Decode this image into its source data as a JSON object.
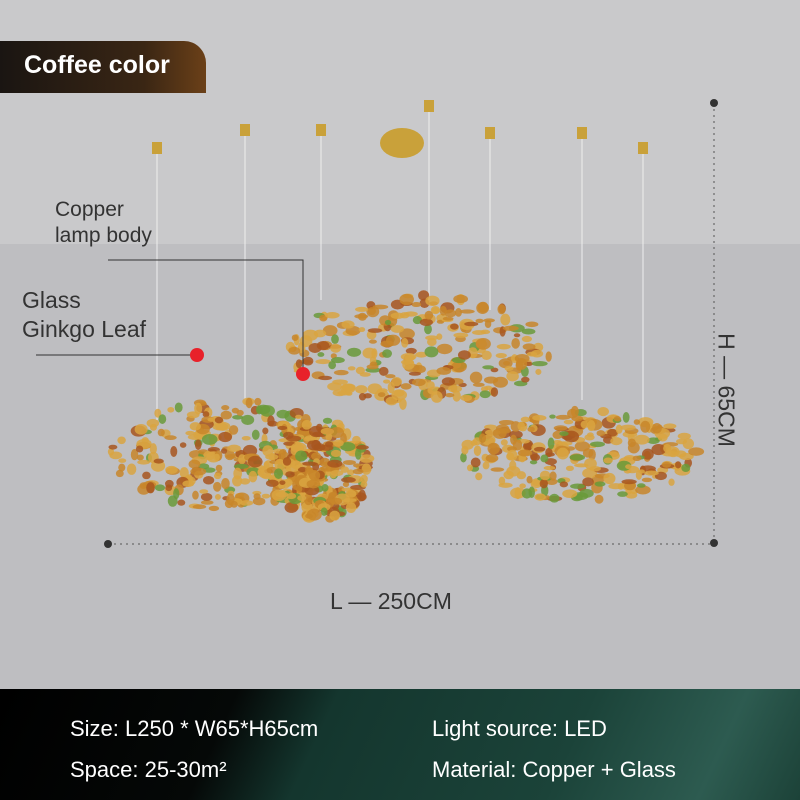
{
  "badge": {
    "label": "Coffee color"
  },
  "callouts": {
    "copper": [
      "Copper",
      "lamp body"
    ],
    "glass": [
      "Glass",
      "Ginkgo Leaf"
    ]
  },
  "dimensions": {
    "height": "H — 65CM",
    "length": "L — 250CM"
  },
  "specs": {
    "size": "Size: L250 * W65*H65cm",
    "light": "Light source: LED",
    "space": "Space: 25-30m²",
    "material": "Material: Copper + Glass"
  },
  "colors": {
    "callout_dot": "#e8212a",
    "leaf": "#c8862a",
    "leaf_green": "#6a9a3a",
    "brass": "#c9a13a"
  }
}
